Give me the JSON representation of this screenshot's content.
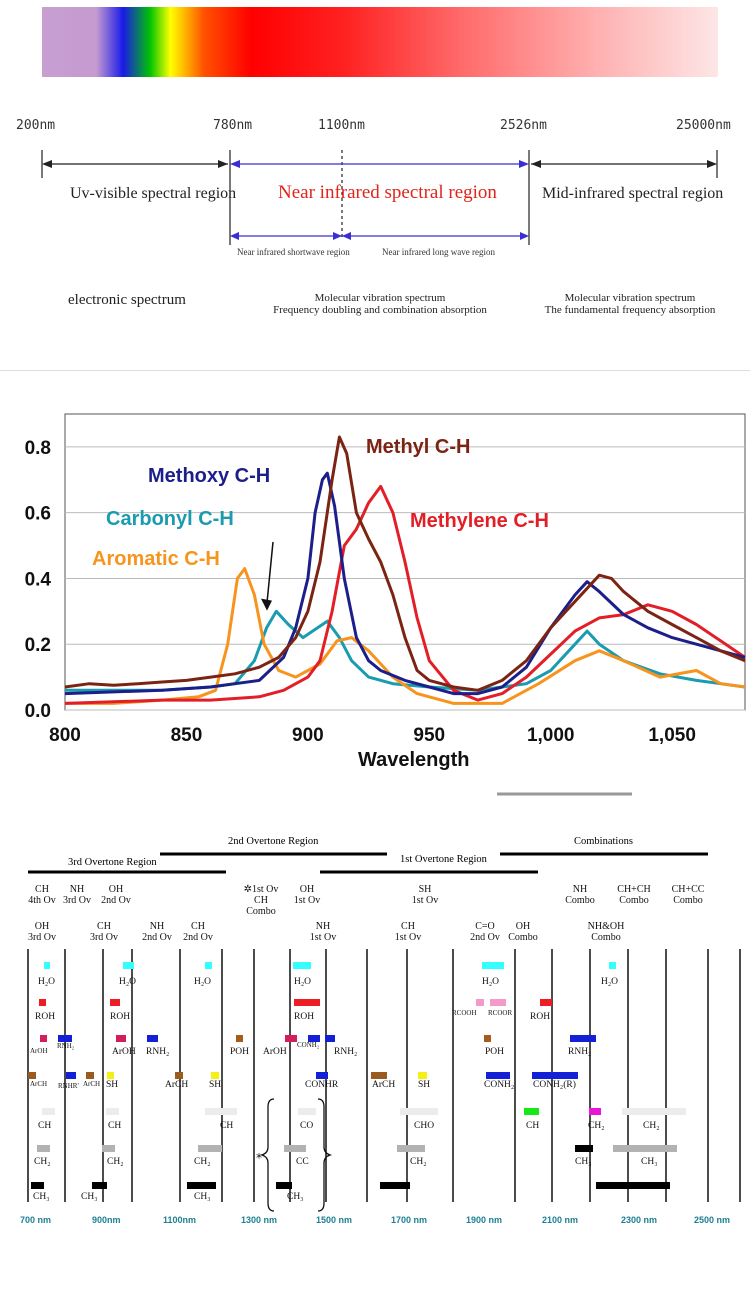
{
  "panel1": {
    "wavelengths": [
      "200nm",
      "780nm",
      "1100nm",
      "2526nm",
      "25000nm"
    ],
    "regions": {
      "uv_visible": "Uv-visible spectral region",
      "nir": "Near infrared spectral region",
      "mid_ir": "Mid-infrared spectral region",
      "nir_short": "Near infrared shortwave region",
      "nir_long": "Near infrared long wave region"
    },
    "spectra": {
      "electronic": "electronic spectrum",
      "mol_vib_1": "Molecular vibration spectrum",
      "freq_doubling": "Frequency doubling and combination absorption",
      "mol_vib_2": "Molecular vibration spectrum",
      "fundamental": "The fundamental frequency absorption"
    }
  },
  "chart_data": {
    "type": "line",
    "title": "",
    "xlabel": "Wavelength",
    "ylabel": "",
    "xlim": [
      800,
      1080
    ],
    "ylim": [
      0,
      0.9
    ],
    "x_ticks": [
      800,
      850,
      900,
      950,
      1000,
      1050
    ],
    "x_tick_labels": [
      "800",
      "850",
      "900",
      "950",
      "1,000",
      "1,050"
    ],
    "y_ticks": [
      0.0,
      0.2,
      0.4,
      0.6,
      0.8
    ],
    "y_tick_labels": [
      "0.0",
      "0.2",
      "0.4",
      "0.6",
      "0.8"
    ],
    "annotations": [
      {
        "text": "arrow pointing to Carbonyl C-H peak",
        "x": 884,
        "y": 0.29
      }
    ],
    "series": [
      {
        "name": "Methyl C-H",
        "color": "#7b2413",
        "points": [
          [
            800,
            0.07
          ],
          [
            810,
            0.08
          ],
          [
            820,
            0.075
          ],
          [
            830,
            0.08
          ],
          [
            840,
            0.085
          ],
          [
            850,
            0.09
          ],
          [
            860,
            0.1
          ],
          [
            870,
            0.11
          ],
          [
            880,
            0.13
          ],
          [
            888,
            0.16
          ],
          [
            895,
            0.22
          ],
          [
            900,
            0.3
          ],
          [
            905,
            0.45
          ],
          [
            910,
            0.7
          ],
          [
            913,
            0.83
          ],
          [
            916,
            0.78
          ],
          [
            920,
            0.6
          ],
          [
            925,
            0.52
          ],
          [
            930,
            0.45
          ],
          [
            935,
            0.35
          ],
          [
            940,
            0.22
          ],
          [
            945,
            0.12
          ],
          [
            950,
            0.09
          ],
          [
            960,
            0.07
          ],
          [
            970,
            0.06
          ],
          [
            980,
            0.09
          ],
          [
            990,
            0.15
          ],
          [
            1000,
            0.25
          ],
          [
            1010,
            0.33
          ],
          [
            1020,
            0.41
          ],
          [
            1025,
            0.4
          ],
          [
            1030,
            0.36
          ],
          [
            1040,
            0.3
          ],
          [
            1050,
            0.26
          ],
          [
            1060,
            0.22
          ],
          [
            1070,
            0.18
          ],
          [
            1080,
            0.15
          ]
        ]
      },
      {
        "name": "Methoxy C-H",
        "color": "#1c1f8a",
        "points": [
          [
            800,
            0.05
          ],
          [
            820,
            0.055
          ],
          [
            840,
            0.06
          ],
          [
            860,
            0.07
          ],
          [
            870,
            0.08
          ],
          [
            880,
            0.09
          ],
          [
            890,
            0.16
          ],
          [
            895,
            0.25
          ],
          [
            900,
            0.4
          ],
          [
            903,
            0.6
          ],
          [
            906,
            0.7
          ],
          [
            908,
            0.72
          ],
          [
            911,
            0.62
          ],
          [
            915,
            0.4
          ],
          [
            920,
            0.22
          ],
          [
            925,
            0.15
          ],
          [
            930,
            0.12
          ],
          [
            940,
            0.09
          ],
          [
            950,
            0.07
          ],
          [
            960,
            0.05
          ],
          [
            970,
            0.05
          ],
          [
            980,
            0.07
          ],
          [
            990,
            0.13
          ],
          [
            1000,
            0.25
          ],
          [
            1010,
            0.35
          ],
          [
            1015,
            0.39
          ],
          [
            1020,
            0.36
          ],
          [
            1030,
            0.29
          ],
          [
            1040,
            0.25
          ],
          [
            1050,
            0.22
          ],
          [
            1060,
            0.2
          ],
          [
            1070,
            0.18
          ],
          [
            1080,
            0.16
          ]
        ]
      },
      {
        "name": "Methylene C-H",
        "color": "#e21f26",
        "points": [
          [
            800,
            0.02
          ],
          [
            820,
            0.025
          ],
          [
            840,
            0.03
          ],
          [
            860,
            0.03
          ],
          [
            880,
            0.04
          ],
          [
            890,
            0.06
          ],
          [
            900,
            0.1
          ],
          [
            905,
            0.15
          ],
          [
            910,
            0.3
          ],
          [
            915,
            0.5
          ],
          [
            920,
            0.55
          ],
          [
            925,
            0.63
          ],
          [
            930,
            0.68
          ],
          [
            935,
            0.6
          ],
          [
            940,
            0.45
          ],
          [
            945,
            0.28
          ],
          [
            950,
            0.15
          ],
          [
            960,
            0.06
          ],
          [
            970,
            0.03
          ],
          [
            980,
            0.05
          ],
          [
            990,
            0.1
          ],
          [
            1000,
            0.17
          ],
          [
            1010,
            0.24
          ],
          [
            1020,
            0.28
          ],
          [
            1030,
            0.29
          ],
          [
            1040,
            0.32
          ],
          [
            1050,
            0.3
          ],
          [
            1060,
            0.26
          ],
          [
            1070,
            0.21
          ],
          [
            1080,
            0.16
          ]
        ]
      },
      {
        "name": "Carbonyl C-H",
        "color": "#1a9bb0",
        "points": [
          [
            800,
            0.06
          ],
          [
            820,
            0.06
          ],
          [
            840,
            0.06
          ],
          [
            860,
            0.07
          ],
          [
            870,
            0.08
          ],
          [
            878,
            0.15
          ],
          [
            883,
            0.25
          ],
          [
            887,
            0.3
          ],
          [
            892,
            0.26
          ],
          [
            898,
            0.22
          ],
          [
            904,
            0.25
          ],
          [
            908,
            0.27
          ],
          [
            913,
            0.22
          ],
          [
            918,
            0.15
          ],
          [
            925,
            0.1
          ],
          [
            935,
            0.08
          ],
          [
            950,
            0.07
          ],
          [
            970,
            0.06
          ],
          [
            990,
            0.08
          ],
          [
            1000,
            0.12
          ],
          [
            1010,
            0.2
          ],
          [
            1015,
            0.24
          ],
          [
            1020,
            0.2
          ],
          [
            1030,
            0.15
          ],
          [
            1045,
            0.11
          ],
          [
            1060,
            0.09
          ],
          [
            1070,
            0.08
          ],
          [
            1080,
            0.07
          ]
        ]
      },
      {
        "name": "Aromatic C-H",
        "color": "#f7941d",
        "points": [
          [
            800,
            0.02
          ],
          [
            820,
            0.02
          ],
          [
            840,
            0.03
          ],
          [
            855,
            0.04
          ],
          [
            862,
            0.06
          ],
          [
            867,
            0.2
          ],
          [
            871,
            0.4
          ],
          [
            874,
            0.43
          ],
          [
            878,
            0.35
          ],
          [
            882,
            0.2
          ],
          [
            888,
            0.12
          ],
          [
            895,
            0.1
          ],
          [
            905,
            0.14
          ],
          [
            912,
            0.21
          ],
          [
            918,
            0.22
          ],
          [
            925,
            0.18
          ],
          [
            935,
            0.1
          ],
          [
            945,
            0.05
          ],
          [
            960,
            0.02
          ],
          [
            980,
            0.02
          ],
          [
            995,
            0.08
          ],
          [
            1010,
            0.15
          ],
          [
            1020,
            0.18
          ],
          [
            1030,
            0.15
          ],
          [
            1045,
            0.1
          ],
          [
            1060,
            0.12
          ],
          [
            1070,
            0.08
          ],
          [
            1080,
            0.07
          ]
        ]
      }
    ]
  },
  "panel3": {
    "regions": {
      "second_overtone": "2nd Overtone Region",
      "combinations": "Combinations",
      "third_overtone": "3rd Overtone Region",
      "first_overtone": "1st Overtone Region"
    },
    "headers_row1": [
      {
        "l1": "CH",
        "l2": "4th Ov"
      },
      {
        "l1": "NH",
        "l2": "3rd Ov"
      },
      {
        "l1": "OH",
        "l2": "2nd Ov"
      },
      {
        "l1": "✲1st Ov",
        "l2": "CH",
        "l3": "Combo"
      },
      {
        "l1": "OH",
        "l2": "1st Ov"
      },
      {
        "l1": "SH",
        "l2": "1st Ov"
      },
      {
        "l1": "NH",
        "l2": "Combo"
      },
      {
        "l1": "CH+CH",
        "l2": "Combo"
      },
      {
        "l1": "CH+CC",
        "l2": "Combo"
      }
    ],
    "headers_row2": [
      {
        "l1": "OH",
        "l2": "3rd Ov"
      },
      {
        "l1": "CH",
        "l2": "3rd Ov"
      },
      {
        "l1": "NH",
        "l2": "2nd Ov"
      },
      {
        "l1": "CH",
        "l2": "2nd Ov"
      },
      {
        "l1": "NH",
        "l2": "1st Ov"
      },
      {
        "l1": "CH",
        "l2": "1st Ov"
      },
      {
        "l1": "C=O",
        "l2": "2nd Ov"
      },
      {
        "l1": "OH",
        "l2": "Combo"
      },
      {
        "l1": "NH&OH",
        "l2": "Combo"
      }
    ],
    "axis_labels": [
      "700 nm",
      "900nm",
      "1100nm",
      "1300 nm",
      "1500 nm",
      "1700 nm",
      "1900 nm",
      "2100 nm",
      "2300 nm",
      "2500 nm"
    ],
    "band_labels": [
      "H₂O",
      "H₂O",
      "H₂O",
      "H₂O",
      "H₂O",
      "H₂O",
      "ROH",
      "ROH",
      "ROH",
      "RCOOH",
      "RCOOR",
      "ROH",
      "ArOH",
      "RNH₂",
      "ArOH",
      "RNH₂",
      "POH",
      "ArOH",
      "CONH₂",
      "RNH₂",
      "POH",
      "RNH₂",
      "ArCH",
      "RNHR'",
      "ArCH",
      "SH",
      "ArCH",
      "SH",
      "CONHR",
      "ArCH",
      "SH",
      "CONH₂",
      "CONH₂(R)",
      "CH",
      "CH",
      "CH",
      "CO",
      "CHO",
      "CH",
      "CH₂",
      "CH₂",
      "CH₂",
      "CH₂",
      "CH₂",
      "CC",
      "CH₂",
      "CH₃",
      "CH₃",
      "CH₃",
      "CH₃",
      "CH₃",
      "CH₃"
    ],
    "band_colors": {
      "water": "#33ffff",
      "roh": "#ee1c24",
      "rcooh": "#f59ac8",
      "aroh": "#d21f5c",
      "nh": "#1420d6",
      "poh": "#a65d1c",
      "arch": "#9a5b21",
      "sh": "#f5f014",
      "co": "#17e817",
      "cho": "#e817d6",
      "ch": "#ececec",
      "ch2": "#b2b2b2",
      "ch3": "#000000"
    }
  }
}
